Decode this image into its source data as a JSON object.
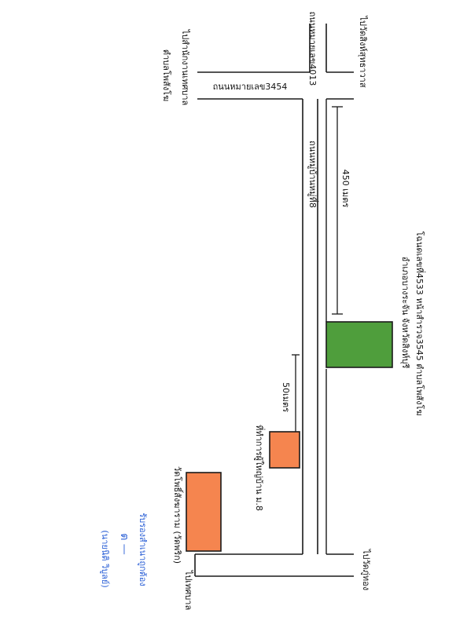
{
  "labels": {
    "to_wat_sing": "ไปวัดสิงห์สุทธาวาส",
    "road_4013": "ถนนหมายเลข4013",
    "road_3454": "ถนนหมายเลข3454",
    "to_subdistrict_office": "ไปสำนักงานเทศบาล",
    "subdistrict_name": "ตำบลโพสังโฆ",
    "village_road": "ถนนหมู่บ้านหมู่ที่8",
    "distance_450": "450 เมตร",
    "deed_line1": "โฉนดเลขที่4533 หน้าสำรวจ3545 ตำบลโพสังโฆ",
    "deed_line2": "อำเภอบางระจัน จังหวัดสิงห์บุรี",
    "distance_50": "50เมตร",
    "village_head_house": "ที่ทำการผู้ใหญ่บ้าน ม.8",
    "temple": "วัดโพธิ์สังฆาราม (วัดพริก)",
    "to_wat_phu_thong": "ไปวัดภู่ทอง",
    "to_municipality": "ไปเทศบาล",
    "certified": "รับรองสำเนาถูกต้อง",
    "signature_mark": "ต —",
    "signer": "(นายนิติ วิบูลย์)"
  },
  "colors": {
    "land_plot": "#4f9e3c",
    "village_office": "#f5854f",
    "temple": "#f5854f",
    "ink": "#1a1a1a",
    "stamp_blue": "#2a5fd6"
  }
}
